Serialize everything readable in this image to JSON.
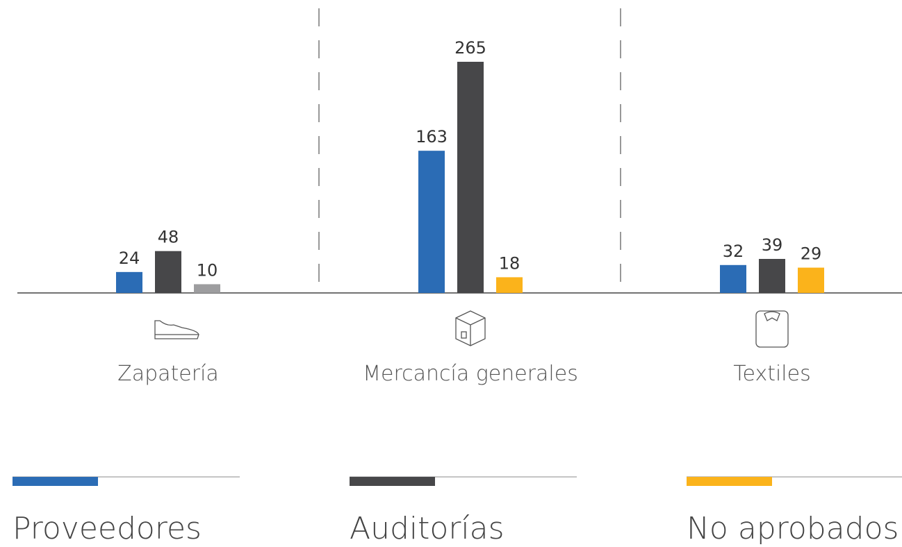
{
  "chart_data": {
    "type": "bar",
    "categories": [
      "Zapatería",
      "Mercancía generales",
      "Textiles"
    ],
    "series": [
      {
        "name": "Proveedores",
        "color": "#2b6cb5",
        "values": [
          24,
          163,
          32
        ]
      },
      {
        "name": "Auditorías",
        "color": "#474749",
        "values": [
          48,
          265,
          39
        ]
      },
      {
        "name": "No aprobados",
        "color": "#fbb31b",
        "colors": [
          "#9d9d9f",
          "#fbb31b",
          "#fbb31b"
        ],
        "values": [
          10,
          18,
          29
        ]
      }
    ]
  }
}
